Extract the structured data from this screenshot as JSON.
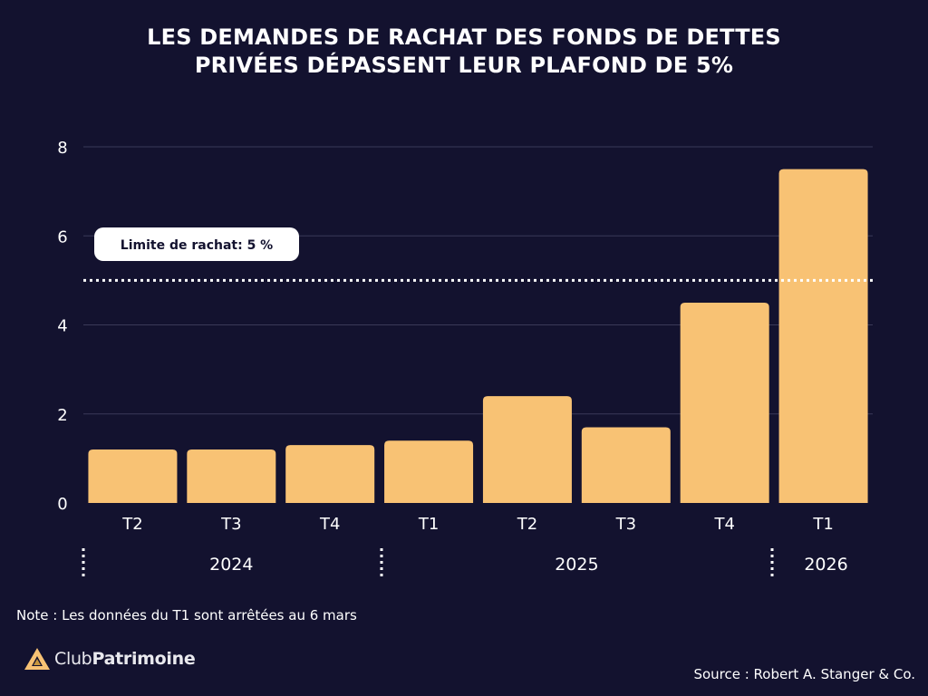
{
  "title_line1": "LES DEMANDES DE RACHAT DES FONDS DE DETTES",
  "title_line2": "PRIVÉES DÉPASSENT LEUR PLAFOND DE 5%",
  "note": "Note : Les données du T1 sont arrêtées au 6 mars",
  "source": "Source : Robert A. Stanger & Co.",
  "logo": {
    "part1": "Club",
    "part2": "Patrimoine",
    "icon": "triangle-logo-icon"
  },
  "colors": {
    "background": "#13122f",
    "bar": "#f8c274",
    "grid": "#3a3958",
    "text": "#ffffff"
  },
  "chart_data": {
    "type": "bar",
    "categories": [
      "T2",
      "T3",
      "T4",
      "T1",
      "T2",
      "T3",
      "T4",
      "T1"
    ],
    "year_groups": [
      {
        "label": "2024",
        "span": 3
      },
      {
        "label": "2025",
        "span": 4
      },
      {
        "label": "2026",
        "span": 1
      }
    ],
    "values": [
      1.2,
      1.2,
      1.3,
      1.4,
      2.4,
      1.7,
      4.5,
      7.5
    ],
    "ylim": [
      0,
      8
    ],
    "yticks": [
      0,
      2,
      4,
      6,
      8
    ],
    "threshold": {
      "value": 5,
      "label": "Limite de rachat: 5 %"
    },
    "grid": true,
    "title": "LES DEMANDES DE RACHAT DES FONDS DE DETTES PRIVÉES DÉPASSENT LEUR PLAFOND DE 5%",
    "xlabel": "",
    "ylabel": ""
  }
}
